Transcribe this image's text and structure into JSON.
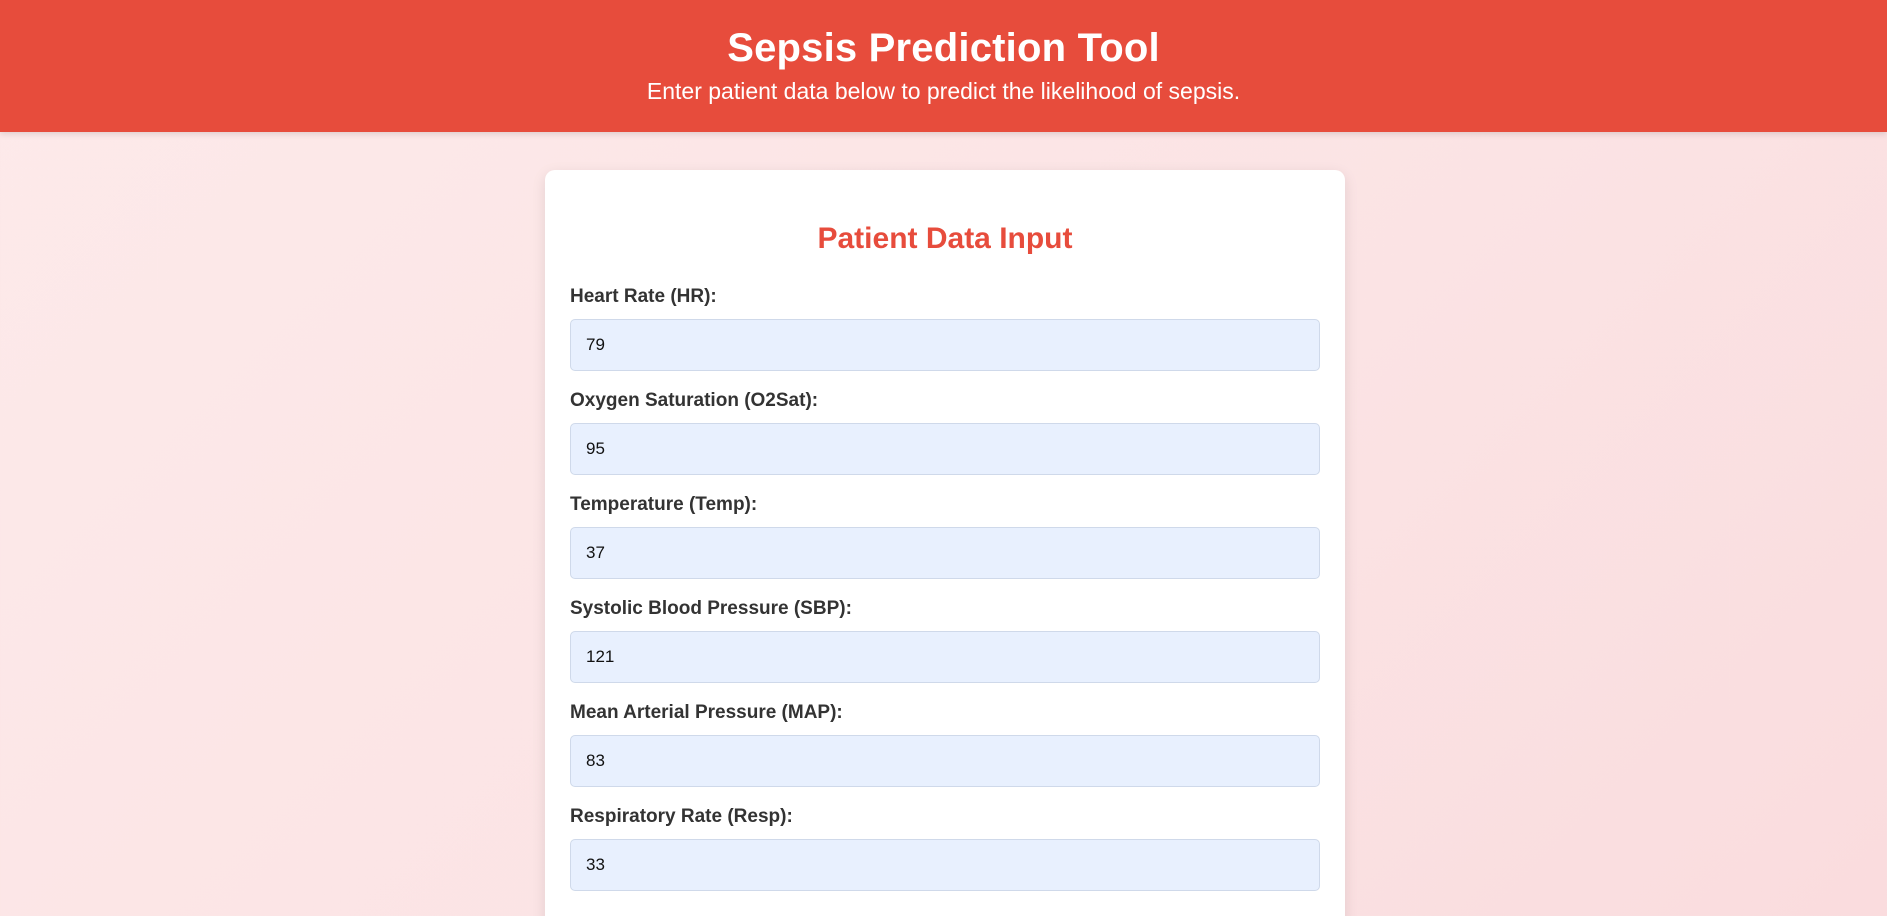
{
  "header": {
    "title": "Sepsis Prediction Tool",
    "subtitle": "Enter patient data below to predict the likelihood of sepsis."
  },
  "form": {
    "title": "Patient Data Input",
    "fields": [
      {
        "label": "Heart Rate (HR):",
        "value": "79"
      },
      {
        "label": "Oxygen Saturation (O2Sat):",
        "value": "95"
      },
      {
        "label": "Temperature (Temp):",
        "value": "37"
      },
      {
        "label": "Systolic Blood Pressure (SBP):",
        "value": "121"
      },
      {
        "label": "Mean Arterial Pressure (MAP):",
        "value": "83"
      },
      {
        "label": "Respiratory Rate (Resp):",
        "value": "33"
      }
    ]
  },
  "colors": {
    "accent": "#e74c3c",
    "input_bg": "#e8f0fe"
  }
}
